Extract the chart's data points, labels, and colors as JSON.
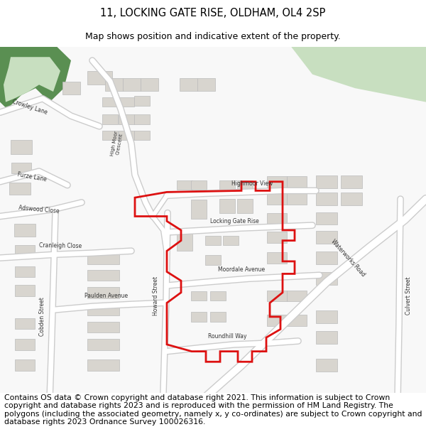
{
  "title_line1": "11, LOCKING GATE RISE, OLDHAM, OL4 2SP",
  "title_line2": "Map shows position and indicative extent of the property.",
  "footer_text": "Contains OS data © Crown copyright and database right 2021. This information is subject to Crown copyright and database rights 2023 and is reproduced with the permission of HM Land Registry. The polygons (including the associated geometry, namely x, y co-ordinates) are subject to Crown copyright and database rights 2023 Ordnance Survey 100026316.",
  "title_fontsize": 10.5,
  "subtitle_fontsize": 9,
  "footer_fontsize": 7.8,
  "fig_width": 6.0,
  "fig_height": 6.25,
  "map_bg_color": "#f8f8f8",
  "road_color": "#ffffff",
  "road_outline_color": "#cccccc",
  "green_area_color": "#c8dfc0",
  "dark_green_color": "#5a8f52",
  "highlight_color": "#dd1111",
  "building_color": "#d8d5cf",
  "building_outline": "#bbbbbb"
}
